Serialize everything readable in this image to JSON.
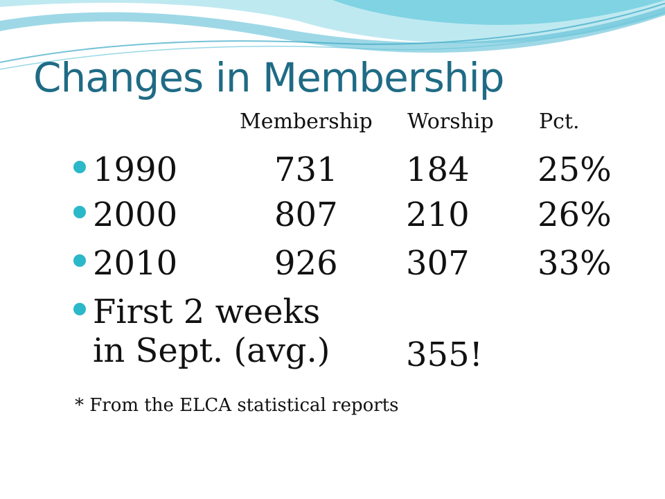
{
  "colors": {
    "title": "#1f6b85",
    "bullet": "#2bb8c8",
    "wave_light": "#bfe9f1",
    "wave_mid": "#7fd3e3",
    "wave_dark": "#4fb8d2"
  },
  "title": "Changes in Membership",
  "headers": {
    "membership": "Membership",
    "worship": "Worship",
    "pct": "Pct."
  },
  "rows": [
    {
      "year": "1990",
      "membership": "731",
      "worship": "184",
      "pct": "25%"
    },
    {
      "year": "2000",
      "membership": "807",
      "worship": "210",
      "pct": "26%"
    },
    {
      "year": "2010",
      "membership": "926",
      "worship": "307",
      "pct": "33%"
    }
  ],
  "special": {
    "line1": "First 2 weeks",
    "line2": "in Sept. (avg.)",
    "worship": "355!"
  },
  "footnote": "* From the ELCA statistical reports"
}
